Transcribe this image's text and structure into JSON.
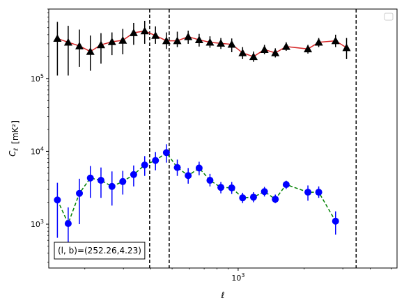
{
  "chart_data": {
    "type": "scatter",
    "xlabel": "ℓ",
    "ylabel_main": "C",
    "ylabel_sub": "ℓ",
    "ylabel_unit": "[mK²]",
    "xscale": "log",
    "yscale": "log",
    "xlim": [
      137,
      5300
    ],
    "ylim": [
      250,
      900000
    ],
    "x_ticks": [
      {
        "value": 1000,
        "base": "10",
        "exp": "3"
      }
    ],
    "y_ticks": [
      {
        "value": 1000,
        "base": "10",
        "exp": "3"
      },
      {
        "value": 10000,
        "base": "10",
        "exp": "4"
      },
      {
        "value": 100000,
        "base": "10",
        "exp": "5"
      }
    ],
    "legend": "top-right",
    "vlines": [
      395,
      485,
      3450
    ],
    "annotation": "(l, b)=(252.26,4.23)",
    "series": [
      {
        "marker": "triangle",
        "marker_color": "#000000",
        "line_color": "#d62728",
        "line_style": "solid",
        "points": [
          {
            "x": 150,
            "y": 355000,
            "lo": 110000,
            "hi": 600000
          },
          {
            "x": 168,
            "y": 315000,
            "lo": 110000,
            "hi": 530000
          },
          {
            "x": 189,
            "y": 280000,
            "lo": 145000,
            "hi": 470000
          },
          {
            "x": 212,
            "y": 235000,
            "lo": 128000,
            "hi": 390000
          },
          {
            "x": 237,
            "y": 290000,
            "lo": 160000,
            "hi": 420000
          },
          {
            "x": 266,
            "y": 320000,
            "lo": 210000,
            "hi": 430000
          },
          {
            "x": 298,
            "y": 335000,
            "lo": 215000,
            "hi": 480000
          },
          {
            "x": 334,
            "y": 425000,
            "lo": 290000,
            "hi": 580000
          },
          {
            "x": 375,
            "y": 450000,
            "lo": 300000,
            "hi": 620000
          },
          {
            "x": 420,
            "y": 390000,
            "lo": 300000,
            "hi": 520000
          },
          {
            "x": 471,
            "y": 330000,
            "lo": 255000,
            "hi": 430000
          },
          {
            "x": 528,
            "y": 330000,
            "lo": 270000,
            "hi": 440000
          },
          {
            "x": 592,
            "y": 375000,
            "lo": 300000,
            "hi": 455000
          },
          {
            "x": 664,
            "y": 340000,
            "lo": 275000,
            "hi": 410000
          },
          {
            "x": 744,
            "y": 315000,
            "lo": 265000,
            "hi": 380000
          },
          {
            "x": 834,
            "y": 305000,
            "lo": 255000,
            "hi": 360000
          },
          {
            "x": 935,
            "y": 295000,
            "lo": 230000,
            "hi": 355000
          },
          {
            "x": 1048,
            "y": 225000,
            "lo": 185000,
            "hi": 270000
          },
          {
            "x": 1175,
            "y": 200000,
            "lo": 170000,
            "hi": 235000
          },
          {
            "x": 1318,
            "y": 250000,
            "lo": 215000,
            "hi": 290000
          },
          {
            "x": 1477,
            "y": 225000,
            "lo": 195000,
            "hi": 260000
          },
          {
            "x": 1656,
            "y": 275000,
            "lo": 240000,
            "hi": 315000
          },
          {
            "x": 2080,
            "y": 255000,
            "lo": 220000,
            "hi": 290000
          },
          {
            "x": 2330,
            "y": 315000,
            "lo": 270000,
            "hi": 360000
          },
          {
            "x": 2780,
            "y": 330000,
            "lo": 270000,
            "hi": 400000
          },
          {
            "x": 3120,
            "y": 265000,
            "lo": 185000,
            "hi": 360000
          }
        ]
      },
      {
        "marker": "circle",
        "marker_color": "#0000ff",
        "line_color": "#008000",
        "line_style": "dashed",
        "points": [
          {
            "x": 150,
            "y": 2150,
            "lo": 650,
            "hi": 3700
          },
          {
            "x": 168,
            "y": 1020,
            "lo": 400,
            "hi": 1700
          },
          {
            "x": 189,
            "y": 2650,
            "lo": 1000,
            "hi": 4200
          },
          {
            "x": 212,
            "y": 4300,
            "lo": 2300,
            "hi": 6300
          },
          {
            "x": 237,
            "y": 4000,
            "lo": 2300,
            "hi": 6000
          },
          {
            "x": 266,
            "y": 3300,
            "lo": 1800,
            "hi": 5300
          },
          {
            "x": 298,
            "y": 3850,
            "lo": 2550,
            "hi": 5400
          },
          {
            "x": 334,
            "y": 4800,
            "lo": 3300,
            "hi": 6400
          },
          {
            "x": 375,
            "y": 6500,
            "lo": 4600,
            "hi": 8600
          },
          {
            "x": 420,
            "y": 7500,
            "lo": 5500,
            "hi": 9800
          },
          {
            "x": 471,
            "y": 9600,
            "lo": 7000,
            "hi": 12500
          },
          {
            "x": 528,
            "y": 6000,
            "lo": 4600,
            "hi": 7700
          },
          {
            "x": 592,
            "y": 4650,
            "lo": 3600,
            "hi": 5900
          },
          {
            "x": 664,
            "y": 5900,
            "lo": 4700,
            "hi": 7200
          },
          {
            "x": 744,
            "y": 4000,
            "lo": 3300,
            "hi": 4900
          },
          {
            "x": 834,
            "y": 3200,
            "lo": 2650,
            "hi": 3800
          },
          {
            "x": 935,
            "y": 3150,
            "lo": 2600,
            "hi": 3800
          },
          {
            "x": 1048,
            "y": 2300,
            "lo": 1950,
            "hi": 2700
          },
          {
            "x": 1175,
            "y": 2350,
            "lo": 2000,
            "hi": 2750
          },
          {
            "x": 1318,
            "y": 2800,
            "lo": 2400,
            "hi": 3250
          },
          {
            "x": 1477,
            "y": 2200,
            "lo": 1950,
            "hi": 2550
          },
          {
            "x": 1656,
            "y": 3500,
            "lo": 3050,
            "hi": 3950
          },
          {
            "x": 2080,
            "y": 2750,
            "lo": 2100,
            "hi": 3400
          },
          {
            "x": 2330,
            "y": 2750,
            "lo": 2300,
            "hi": 3300
          },
          {
            "x": 2780,
            "y": 1100,
            "lo": 720,
            "hi": 1500
          }
        ]
      }
    ]
  }
}
